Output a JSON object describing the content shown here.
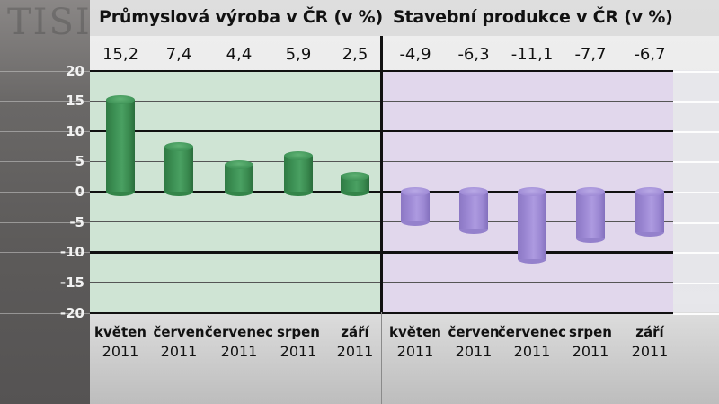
{
  "chart_data": [
    {
      "type": "bar",
      "title": "Průmyslová výroba v ČR (v %)",
      "categories": [
        "květen 2011",
        "červen 2011",
        "červenec 2011",
        "srpen 2011",
        "září 2011"
      ],
      "values": [
        15.2,
        7.4,
        4.4,
        5.9,
        2.5
      ],
      "value_labels": [
        "15,2",
        "7,4",
        "4,4",
        "5,9",
        "2,5"
      ],
      "xlabel": "",
      "ylabel": "",
      "ylim": [
        -20,
        20
      ],
      "yticks": [
        20,
        15,
        10,
        5,
        0,
        -5,
        -10,
        -15,
        -20
      ],
      "grid": true,
      "color": "#3f9457"
    },
    {
      "type": "bar",
      "title": "Stavební produkce v ČR (v %)",
      "categories": [
        "květen 2011",
        "červen 2011",
        "červenec 2011",
        "srpen 2011",
        "září 2011"
      ],
      "values": [
        -4.9,
        -6.3,
        -11.1,
        -7.7,
        -6.7
      ],
      "value_labels": [
        "-4,9",
        "-6,3",
        "-11,1",
        "-7,7",
        "-6,7"
      ],
      "xlabel": "",
      "ylabel": "",
      "ylim": [
        -20,
        20
      ],
      "yticks": [
        20,
        15,
        10,
        5,
        0,
        -5,
        -10,
        -15,
        -20
      ],
      "grid": true,
      "color": "#a08cd8"
    }
  ],
  "left": {
    "title": "Průmyslová výroba v ČR (v %)",
    "values": [
      "15,2",
      "7,4",
      "4,4",
      "5,9",
      "2,5"
    ],
    "months": [
      "květen",
      "červen",
      "červenec",
      "srpen",
      "září"
    ],
    "year": "2011"
  },
  "right": {
    "title": "Stavební produkce v ČR (v %)",
    "values": [
      "-4,9",
      "-6,3",
      "-11,1",
      "-7,7",
      "-6,7"
    ],
    "months": [
      "květen",
      "červen",
      "červenec",
      "srpen",
      "září"
    ],
    "year": "2011"
  },
  "yaxis": {
    "ticks": [
      "20",
      "15",
      "10",
      "5",
      "0",
      "-5",
      "-10",
      "-15",
      "-20"
    ]
  },
  "colors": {
    "industry_bar": "#3f9457",
    "construction_bar": "#a08cd8",
    "left_plot_bg": "#cde4d2",
    "right_plot_bg": "#e0d6ec",
    "axis_panel": "#5d5b5a"
  }
}
